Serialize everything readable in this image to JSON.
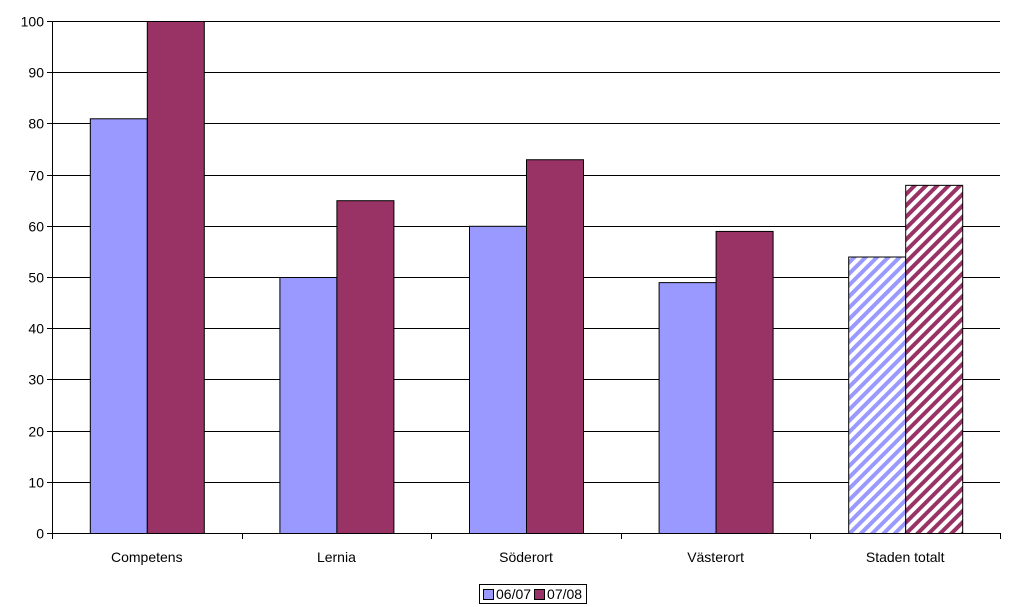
{
  "chart_data": {
    "type": "bar",
    "categories": [
      "Competens",
      "Lernia",
      "Söderort",
      "Västerort",
      "Staden totalt"
    ],
    "series": [
      {
        "name": "06/07",
        "values": [
          81,
          50,
          60,
          49,
          54
        ],
        "color": "#9999ff"
      },
      {
        "name": "07/08",
        "values": [
          100,
          65,
          73,
          59,
          68
        ],
        "color": "#993366"
      }
    ],
    "hatched_categories": [
      "Staden totalt"
    ],
    "title": "",
    "xlabel": "",
    "ylabel": "",
    "ylim": [
      0,
      100
    ],
    "yticks": [
      0,
      10,
      20,
      30,
      40,
      50,
      60,
      70,
      80,
      90,
      100
    ],
    "grid": true,
    "legend_position": "bottom"
  }
}
